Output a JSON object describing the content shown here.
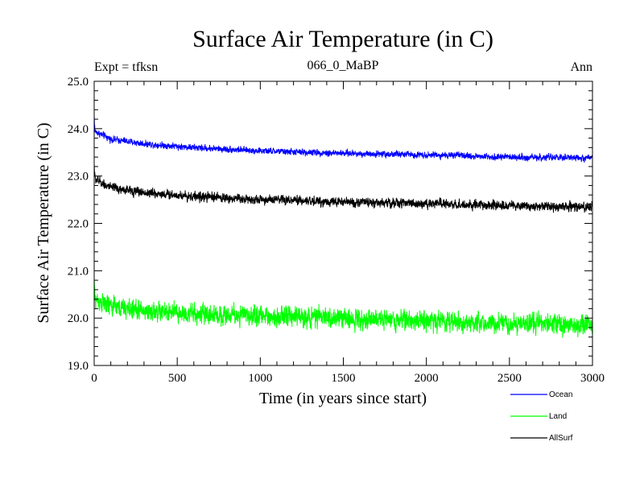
{
  "chart_data": {
    "type": "line",
    "title": "Surface Air Temperature (in C)",
    "subtitle": "066_0_MaBP",
    "top_left_label": "Expt = tfksn",
    "top_right_label": "Ann",
    "xlabel": "Time (in years since start)",
    "ylabel": "Surface Air Temperature (in C)",
    "xlim": [
      0,
      3000
    ],
    "ylim": [
      19.0,
      25.0
    ],
    "xticks": [
      0,
      500,
      1000,
      1500,
      2000,
      2500,
      3000
    ],
    "xtick_labels": [
      "0",
      "500",
      "1000",
      "1500",
      "2000",
      "2500",
      "3000"
    ],
    "yticks": [
      19.0,
      20.0,
      21.0,
      22.0,
      23.0,
      24.0,
      25.0
    ],
    "ytick_labels": [
      "19.0",
      "20.0",
      "21.0",
      "22.0",
      "23.0",
      "24.0",
      "25.0"
    ],
    "legend_position": "bottom-right, outside plot",
    "series": [
      {
        "name": "Ocean",
        "color": "#0000ff",
        "trend_x": [
          0,
          100,
          300,
          600,
          1000,
          1500,
          2000,
          2500,
          3000
        ],
        "trend_y": [
          23.95,
          23.78,
          23.68,
          23.6,
          23.53,
          23.48,
          23.45,
          23.4,
          23.38
        ],
        "noise_amplitude": 0.09
      },
      {
        "name": "Land",
        "color": "#00ff00",
        "trend_x": [
          0,
          100,
          300,
          600,
          1000,
          1500,
          2000,
          2500,
          3000
        ],
        "trend_y": [
          20.4,
          20.25,
          20.15,
          20.08,
          20.05,
          20.0,
          19.95,
          19.88,
          19.85
        ],
        "noise_amplitude": 0.28
      },
      {
        "name": "AllSurf",
        "color": "#000000",
        "trend_x": [
          0,
          100,
          300,
          600,
          1000,
          1500,
          2000,
          2500,
          3000
        ],
        "trend_y": [
          22.95,
          22.75,
          22.65,
          22.57,
          22.5,
          22.45,
          22.42,
          22.37,
          22.35
        ],
        "noise_amplitude": 0.13
      }
    ]
  }
}
